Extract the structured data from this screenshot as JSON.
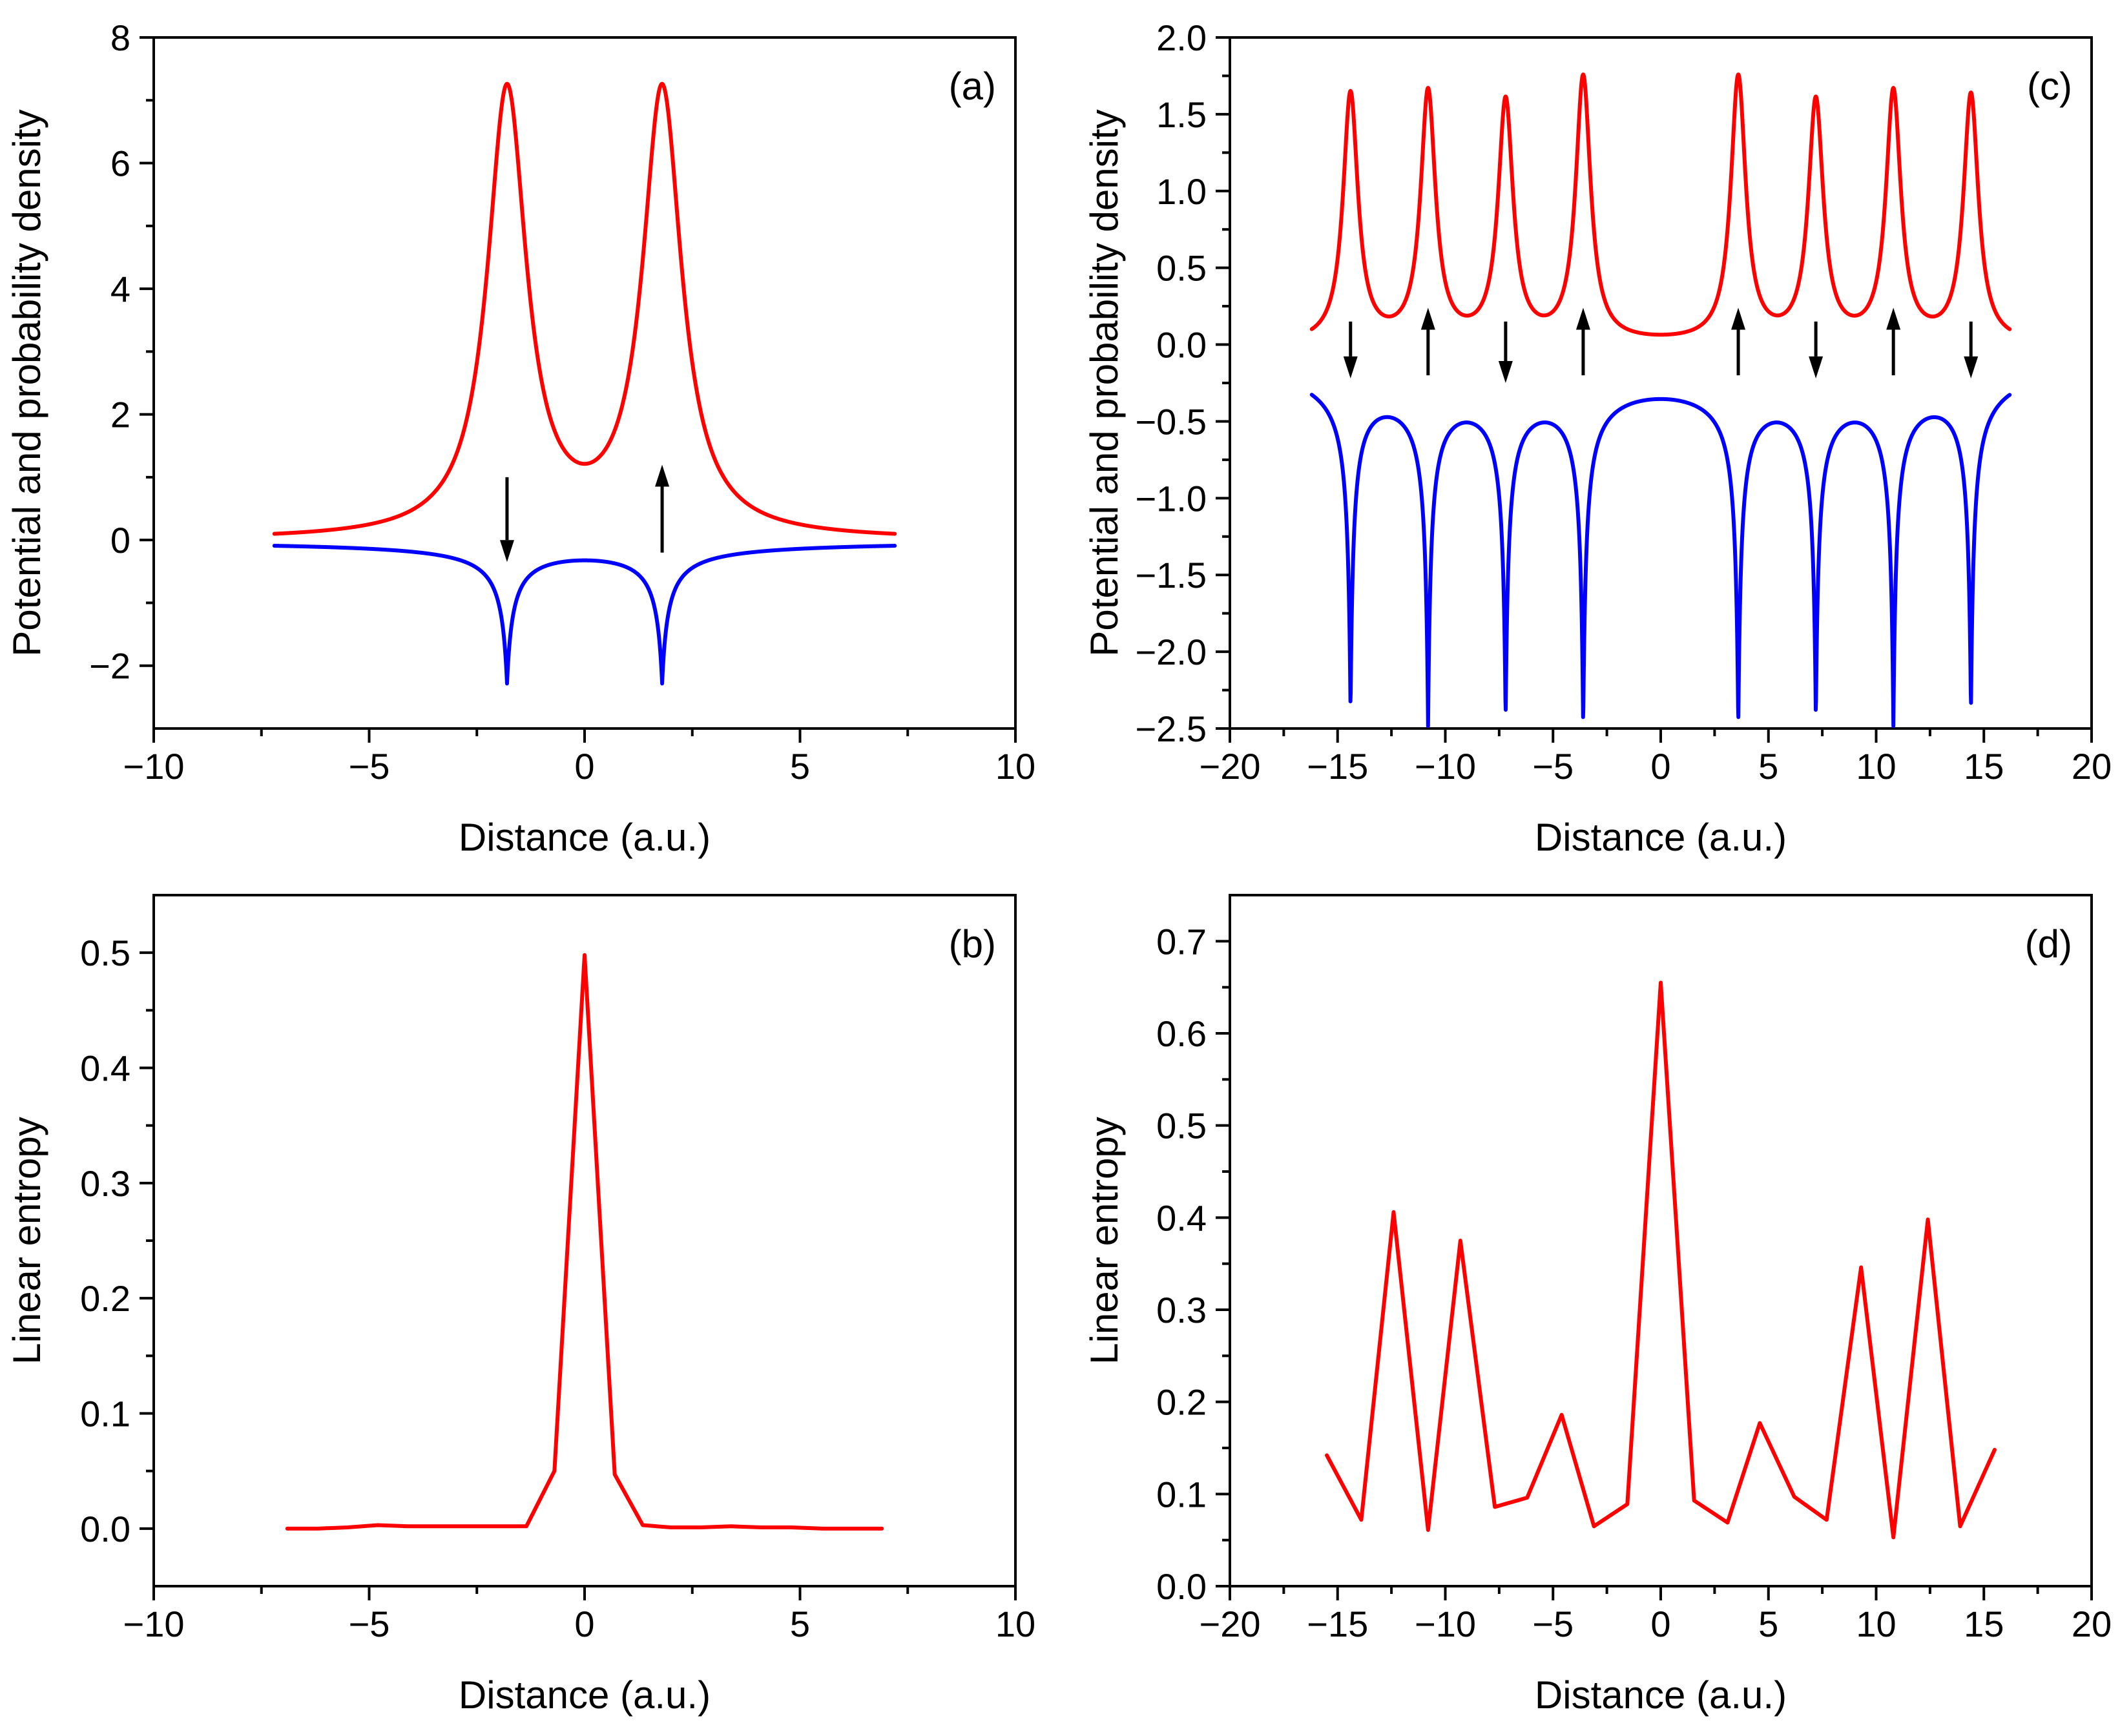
{
  "figure": {
    "colors": {
      "red": "#ff0000",
      "blue": "#0000ff",
      "black": "#000000"
    }
  },
  "chart_data": [
    {
      "id": "a",
      "panel_label": "(a)",
      "type": "line",
      "title": "",
      "xlabel": "Distance (a.u.)",
      "ylabel": "Potential and probability density",
      "xlim": [
        -10,
        10
      ],
      "ylim": [
        -3,
        8
      ],
      "xticks": [
        -10,
        -5,
        0,
        5,
        10
      ],
      "xtick_labels": [
        "−10",
        "−5",
        "0",
        "5",
        "10"
      ],
      "yticks": [
        -2,
        0,
        2,
        4,
        6,
        8
      ],
      "ytick_labels": [
        "−2",
        "0",
        "2",
        "4",
        "6",
        "8"
      ],
      "grid": false,
      "series": [
        {
          "name": "probability density",
          "color": "#ff0000",
          "model": "lorentzian_peaks",
          "x_range": [
            -7.2,
            7.2
          ],
          "baseline": 0,
          "peaks": [
            {
              "center": -1.8,
              "height": 7.1,
              "width": 0.55
            },
            {
              "center": 1.8,
              "height": 7.1,
              "width": 0.55
            }
          ]
        },
        {
          "name": "potential",
          "color": "#0000ff",
          "model": "potential_wells",
          "x_range": [
            -7.2,
            7.2
          ],
          "wells": [
            {
              "center": -1.8,
              "depth": 2.2
            },
            {
              "center": 1.8,
              "depth": 2.2
            }
          ]
        }
      ],
      "arrows": [
        {
          "x": -1.8,
          "y_from": 1.0,
          "y_to": -0.35,
          "direction": "down"
        },
        {
          "x": 1.8,
          "y_from": -0.2,
          "y_to": 1.2,
          "direction": "up"
        }
      ]
    },
    {
      "id": "b",
      "panel_label": "(b)",
      "type": "line",
      "title": "",
      "xlabel": "Distance (a.u.)",
      "ylabel": "Linear entropy",
      "xlim": [
        -10,
        10
      ],
      "ylim": [
        -0.05,
        0.55
      ],
      "xticks": [
        -10,
        -5,
        0,
        5,
        10
      ],
      "xtick_labels": [
        "−10",
        "−5",
        "0",
        "5",
        "10"
      ],
      "yticks": [
        0.0,
        0.1,
        0.2,
        0.3,
        0.4,
        0.5
      ],
      "ytick_labels": [
        "0.0",
        "0.1",
        "0.2",
        "0.3",
        "0.4",
        "0.5"
      ],
      "grid": false,
      "series": [
        {
          "name": "linear entropy",
          "color": "#ff0000",
          "x": [
            -6.9,
            -6.2,
            -5.5,
            -4.8,
            -4.1,
            -3.4,
            -2.7,
            -2.0,
            -1.35,
            -0.7,
            0,
            0.7,
            1.35,
            2.0,
            2.7,
            3.4,
            4.1,
            4.8,
            5.5,
            6.2,
            6.9
          ],
          "y": [
            0.0,
            0.0,
            0.001,
            0.003,
            0.002,
            0.002,
            0.002,
            0.002,
            0.002,
            0.05,
            0.498,
            0.047,
            0.003,
            0.001,
            0.001,
            0.002,
            0.001,
            0.001,
            0.0,
            0.0,
            0.0
          ]
        }
      ]
    },
    {
      "id": "c",
      "panel_label": "(c)",
      "type": "line",
      "title": "",
      "xlabel": "Distance (a.u.)",
      "ylabel": "Potential and probability density",
      "xlim": [
        -20,
        20
      ],
      "ylim": [
        -2.5,
        2.0
      ],
      "xticks": [
        -20,
        -15,
        -10,
        -5,
        0,
        5,
        10,
        15,
        20
      ],
      "xtick_labels": [
        "−20",
        "−15",
        "−10",
        "−5",
        "0",
        "5",
        "10",
        "15",
        "20"
      ],
      "yticks": [
        -2.5,
        -2.0,
        -1.5,
        -1.0,
        -0.5,
        0.0,
        0.5,
        1.0,
        1.5,
        2.0
      ],
      "ytick_labels": [
        "−2.5",
        "−2.0",
        "−1.5",
        "−1.0",
        "−0.5",
        "0.0",
        "0.5",
        "1.0",
        "1.5",
        "2.0"
      ],
      "grid": false,
      "series": [
        {
          "name": "probability density",
          "color": "#ff0000",
          "model": "lorentzian_peaks",
          "x_range": [
            -16.2,
            16.2
          ],
          "baseline": 0,
          "peaks": [
            {
              "center": -14.4,
              "height": 1.62,
              "width": 0.42
            },
            {
              "center": -10.8,
              "height": 1.62,
              "width": 0.42
            },
            {
              "center": -7.2,
              "height": 1.56,
              "width": 0.42
            },
            {
              "center": -3.6,
              "height": 1.72,
              "width": 0.42
            },
            {
              "center": 3.6,
              "height": 1.72,
              "width": 0.42
            },
            {
              "center": 7.2,
              "height": 1.56,
              "width": 0.42
            },
            {
              "center": 10.8,
              "height": 1.62,
              "width": 0.42
            },
            {
              "center": 14.4,
              "height": 1.61,
              "width": 0.42
            }
          ]
        },
        {
          "name": "potential",
          "color": "#0000ff",
          "model": "potential_wells",
          "x_range": [
            -16.2,
            16.2
          ],
          "wells": [
            {
              "center": -14.4,
              "depth": 2.18
            },
            {
              "center": -10.8,
              "depth": 2.21
            },
            {
              "center": -7.2,
              "depth": 2.15
            },
            {
              "center": -3.6,
              "depth": 2.23
            },
            {
              "center": 3.6,
              "depth": 2.23
            },
            {
              "center": 7.2,
              "depth": 2.15
            },
            {
              "center": 10.8,
              "depth": 2.21
            },
            {
              "center": 14.4,
              "depth": 2.19
            }
          ]
        }
      ],
      "arrows": [
        {
          "x": -14.4,
          "y_from": 0.15,
          "y_to": -0.22,
          "direction": "down"
        },
        {
          "x": -10.8,
          "y_from": -0.2,
          "y_to": 0.24,
          "direction": "up"
        },
        {
          "x": -7.2,
          "y_from": 0.15,
          "y_to": -0.25,
          "direction": "down"
        },
        {
          "x": -3.6,
          "y_from": -0.2,
          "y_to": 0.24,
          "direction": "up"
        },
        {
          "x": 3.6,
          "y_from": -0.2,
          "y_to": 0.24,
          "direction": "up"
        },
        {
          "x": 7.2,
          "y_from": 0.15,
          "y_to": -0.22,
          "direction": "down"
        },
        {
          "x": 10.8,
          "y_from": -0.2,
          "y_to": 0.24,
          "direction": "up"
        },
        {
          "x": 14.4,
          "y_from": 0.15,
          "y_to": -0.22,
          "direction": "down"
        }
      ]
    },
    {
      "id": "d",
      "panel_label": "(d)",
      "type": "line",
      "title": "",
      "xlabel": "Distance (a.u.)",
      "ylabel": "Linear entropy",
      "xlim": [
        -20,
        20
      ],
      "ylim": [
        0.0,
        0.75
      ],
      "xticks": [
        -20,
        -15,
        -10,
        -5,
        0,
        5,
        10,
        15,
        20
      ],
      "xtick_labels": [
        "−20",
        "−15",
        "−10",
        "−5",
        "0",
        "5",
        "10",
        "15",
        "20"
      ],
      "yticks": [
        0.0,
        0.1,
        0.2,
        0.3,
        0.4,
        0.5,
        0.6,
        0.7
      ],
      "ytick_labels": [
        "0.0",
        "0.1",
        "0.2",
        "0.3",
        "0.4",
        "0.5",
        "0.6",
        "0.7"
      ],
      "grid": false,
      "series": [
        {
          "name": "linear entropy",
          "color": "#ff0000",
          "x": [
            -15.5,
            -13.9,
            -12.4,
            -10.8,
            -9.3,
            -7.7,
            -6.2,
            -4.6,
            -3.1,
            -1.55,
            0,
            1.55,
            3.1,
            4.6,
            6.2,
            7.7,
            9.3,
            10.8,
            12.4,
            13.9,
            15.5
          ],
          "y": [
            0.142,
            0.072,
            0.406,
            0.061,
            0.375,
            0.086,
            0.096,
            0.186,
            0.065,
            0.089,
            0.655,
            0.093,
            0.069,
            0.177,
            0.097,
            0.072,
            0.346,
            0.053,
            0.398,
            0.065,
            0.148
          ]
        }
      ]
    }
  ]
}
